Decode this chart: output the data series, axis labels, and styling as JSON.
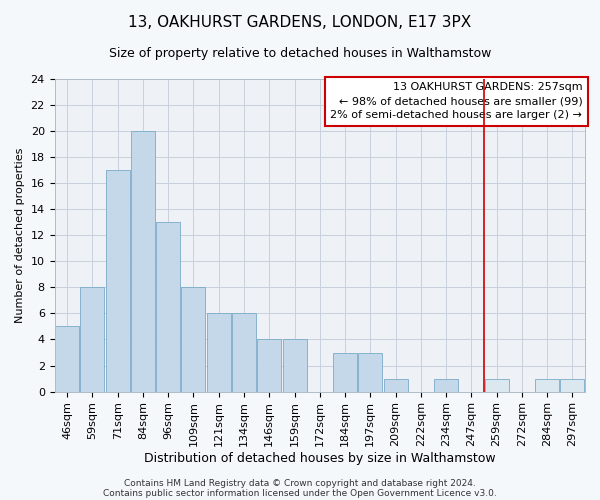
{
  "title": "13, OAKHURST GARDENS, LONDON, E17 3PX",
  "subtitle": "Size of property relative to detached houses in Walthamstow",
  "xlabel": "Distribution of detached houses by size in Walthamstow",
  "ylabel": "Number of detached properties",
  "bar_labels": [
    "46sqm",
    "59sqm",
    "71sqm",
    "84sqm",
    "96sqm",
    "109sqm",
    "121sqm",
    "134sqm",
    "146sqm",
    "159sqm",
    "172sqm",
    "184sqm",
    "197sqm",
    "209sqm",
    "222sqm",
    "234sqm",
    "247sqm",
    "259sqm",
    "272sqm",
    "284sqm",
    "297sqm"
  ],
  "bar_values": [
    5,
    8,
    17,
    20,
    13,
    8,
    6,
    6,
    4,
    4,
    0,
    3,
    3,
    1,
    0,
    1,
    0,
    1,
    0,
    1,
    1
  ],
  "bar_color_left": "#c5d8ea",
  "bar_color_right": "#dce8f0",
  "bar_edge_color": "#7aaac8",
  "vline_x_index": 17,
  "vline_color": "#cc0000",
  "annotation_line1": "13 OAKHURST GARDENS: 257sqm",
  "annotation_line2": "← 98% of detached houses are smaller (99)",
  "annotation_line3": "2% of semi-detached houses are larger (2) →",
  "annotation_box_color": "#ffffff",
  "annotation_box_edge_color": "#cc0000",
  "ylim": [
    0,
    24
  ],
  "yticks": [
    0,
    2,
    4,
    6,
    8,
    10,
    12,
    14,
    16,
    18,
    20,
    22,
    24
  ],
  "footer_line1": "Contains HM Land Registry data © Crown copyright and database right 2024.",
  "footer_line2": "Contains public sector information licensed under the Open Government Licence v3.0.",
  "bg_color": "#f5f8fb",
  "plot_bg_color": "#eef2f7",
  "grid_color": "#c8d2dc",
  "title_fontsize": 11,
  "subtitle_fontsize": 9,
  "xlabel_fontsize": 9,
  "ylabel_fontsize": 8,
  "tick_fontsize": 8,
  "annot_fontsize": 8,
  "footer_fontsize": 6.5
}
